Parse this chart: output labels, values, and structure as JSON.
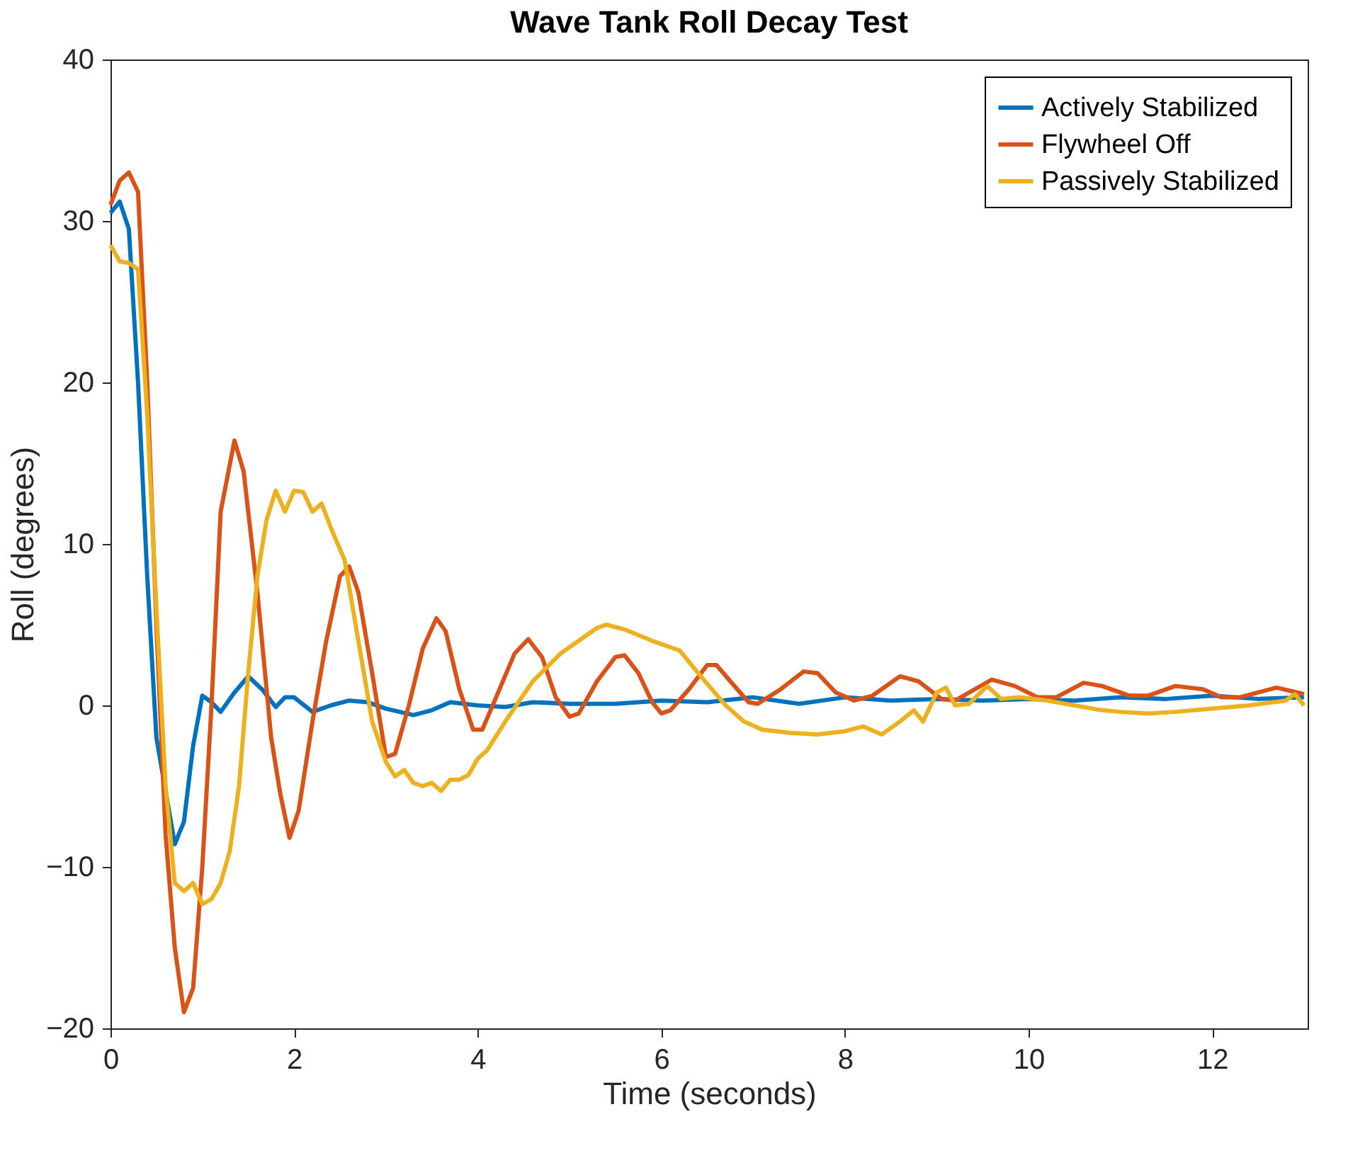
{
  "chart_data": {
    "type": "line",
    "title": "Wave Tank Roll Decay Test",
    "xlabel": "Time (seconds)",
    "ylabel": "Roll (degrees)",
    "xlim": [
      0,
      13.04
    ],
    "xticks": [
      0,
      2,
      4,
      6,
      8,
      10,
      12
    ],
    "ylim": [
      -20,
      40
    ],
    "yticks": [
      -20,
      -10,
      0,
      10,
      20,
      30,
      40
    ],
    "grid": false,
    "legend": "top right",
    "line_style": "solid",
    "marker": "none",
    "series": [
      {
        "name": "Actively Stabilized",
        "color": "#0072bd",
        "x": [
          0,
          0.1,
          0.2,
          0.3,
          0.4,
          0.5,
          0.7,
          0.8,
          0.9,
          1.0,
          1.1,
          1.2,
          1.35,
          1.5,
          1.65,
          1.8,
          1.9,
          2.0,
          2.2,
          2.4,
          2.6,
          2.8,
          3.0,
          3.3,
          3.5,
          3.7,
          4.0,
          4.3,
          4.6,
          5.0,
          5.5,
          6.0,
          6.5,
          7.0,
          7.5,
          8.0,
          8.5,
          9.0,
          9.5,
          10,
          10.5,
          11,
          11.5,
          12,
          12.5,
          13
        ],
        "values": [
          30.5,
          31.2,
          29.5,
          20,
          8,
          -2,
          -8.6,
          -7.2,
          -2.5,
          0.6,
          0.2,
          -0.4,
          0.8,
          1.8,
          1.0,
          -0.1,
          0.5,
          0.5,
          -0.4,
          0,
          0.3,
          0.2,
          -0.2,
          -0.6,
          -0.3,
          0.2,
          0,
          -0.1,
          0.2,
          0.1,
          0.1,
          0.3,
          0.2,
          0.5,
          0.1,
          0.5,
          0.3,
          0.4,
          0.3,
          0.4,
          0.3,
          0.5,
          0.4,
          0.6,
          0.4,
          0.5
        ]
      },
      {
        "name": "Flywheel Off",
        "color": "#d95319",
        "x": [
          0,
          0.1,
          0.2,
          0.3,
          0.4,
          0.5,
          0.6,
          0.7,
          0.8,
          0.9,
          1.0,
          1.1,
          1.2,
          1.35,
          1.45,
          1.6,
          1.75,
          1.85,
          1.95,
          2.05,
          2.2,
          2.35,
          2.5,
          2.6,
          2.7,
          2.85,
          3.0,
          3.1,
          3.25,
          3.4,
          3.55,
          3.65,
          3.8,
          3.95,
          4.05,
          4.2,
          4.4,
          4.55,
          4.7,
          4.85,
          5.0,
          5.1,
          5.3,
          5.5,
          5.6,
          5.75,
          5.9,
          6.0,
          6.1,
          6.3,
          6.5,
          6.6,
          6.75,
          6.95,
          7.05,
          7.3,
          7.55,
          7.7,
          7.9,
          8.1,
          8.3,
          8.6,
          8.8,
          9.05,
          9.2,
          9.6,
          9.85,
          10.1,
          10.3,
          10.6,
          10.8,
          11.1,
          11.3,
          11.6,
          11.9,
          12.1,
          12.3,
          12.7,
          13.0
        ],
        "values": [
          31,
          32.5,
          33,
          31.8,
          20,
          5,
          -8,
          -15,
          -19,
          -17.5,
          -10,
          0,
          12,
          16.4,
          14.5,
          7,
          -2,
          -5.5,
          -8.2,
          -6.5,
          -1,
          4,
          8,
          8.6,
          7,
          2,
          -3.2,
          -3,
          0,
          3.5,
          5.4,
          4.6,
          1,
          -1.5,
          -1.5,
          0.5,
          3.2,
          4.1,
          3,
          0.5,
          -0.7,
          -0.5,
          1.5,
          3.0,
          3.1,
          2,
          0.2,
          -0.5,
          -0.3,
          1.0,
          2.5,
          2.5,
          1.5,
          0.2,
          0.1,
          1,
          2.1,
          2,
          0.8,
          0.3,
          0.6,
          1.8,
          1.5,
          0.4,
          0.3,
          1.6,
          1.2,
          0.5,
          0.5,
          1.4,
          1.2,
          0.6,
          0.6,
          1.2,
          1.0,
          0.5,
          0.5,
          1.1,
          0.7
        ]
      },
      {
        "name": "Passively Stabilized",
        "color": "#edb120",
        "x": [
          0,
          0.1,
          0.2,
          0.3,
          0.4,
          0.5,
          0.6,
          0.7,
          0.8,
          0.9,
          1.0,
          1.1,
          1.2,
          1.3,
          1.4,
          1.5,
          1.6,
          1.7,
          1.8,
          1.9,
          2.0,
          2.1,
          2.2,
          2.3,
          2.4,
          2.55,
          2.7,
          2.85,
          3.0,
          3.1,
          3.2,
          3.3,
          3.4,
          3.5,
          3.6,
          3.7,
          3.8,
          3.9,
          4.0,
          4.1,
          4.3,
          4.6,
          4.9,
          5.1,
          5.3,
          5.4,
          5.6,
          5.9,
          6.2,
          6.4,
          6.7,
          6.9,
          7.1,
          7.4,
          7.7,
          8.0,
          8.2,
          8.4,
          8.6,
          8.75,
          8.85,
          9.0,
          9.1,
          9.2,
          9.35,
          9.55,
          9.7,
          9.9,
          10.2,
          10.5,
          10.8,
          11.0,
          11.3,
          11.6,
          12.0,
          12.4,
          12.8,
          12.9,
          13.0
        ],
        "values": [
          28.5,
          27.5,
          27.4,
          27,
          18,
          6,
          -5,
          -11,
          -11.5,
          -11,
          -12.3,
          -12,
          -11,
          -9,
          -5,
          2,
          8,
          11.5,
          13.3,
          12,
          13.3,
          13.2,
          12,
          12.5,
          11,
          9,
          4,
          -1,
          -3.5,
          -4.4,
          -4,
          -4.8,
          -5,
          -4.8,
          -5.3,
          -4.6,
          -4.6,
          -4.3,
          -3.3,
          -2.8,
          -1,
          1.5,
          3.2,
          4,
          4.8,
          5,
          4.7,
          4.0,
          3.4,
          2,
          0,
          -1,
          -1.5,
          -1.7,
          -1.8,
          -1.6,
          -1.3,
          -1.8,
          -1,
          -0.3,
          -1,
          0.8,
          1.1,
          0,
          0.1,
          1.2,
          0.4,
          0.5,
          0.3,
          0,
          -0.3,
          -0.4,
          -0.5,
          -0.4,
          -0.2,
          0,
          0.3,
          0.7,
          0
        ]
      }
    ]
  }
}
